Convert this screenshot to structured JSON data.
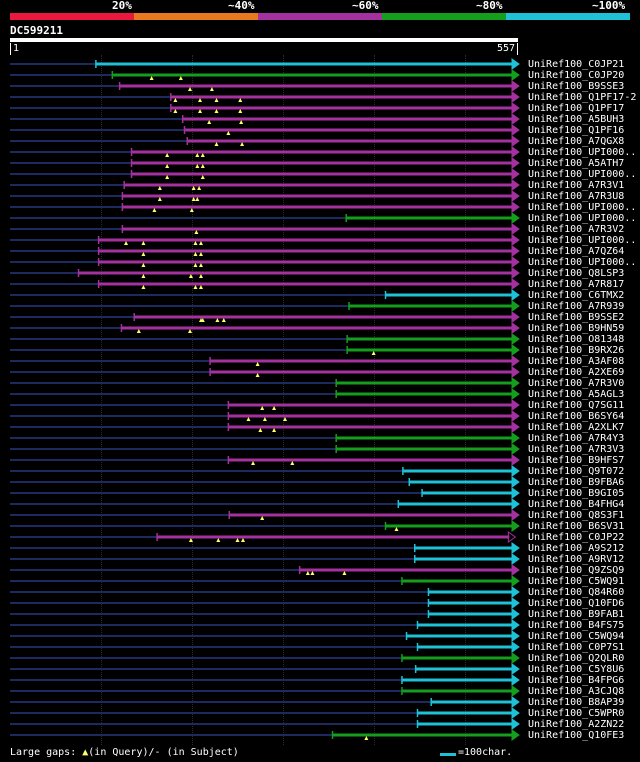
{
  "legend_scale": [
    {
      "label": "20%",
      "color": "#e8193c"
    },
    {
      "label": "~40%",
      "color": "#e8791e"
    },
    {
      "label": "~60%",
      "color": "#a3319e"
    },
    {
      "label": "~80%",
      "color": "#159e1e"
    },
    {
      "label": "~100%",
      "color": "#1ec1d6"
    }
  ],
  "query": {
    "id": "DC599211",
    "start": "1",
    "end": "557",
    "length": 557
  },
  "colors": {
    "c20": "#e8193c",
    "c40": "#e8791e",
    "c60": "#a3319e",
    "c80": "#159e1e",
    "c100": "#1ec1d6",
    "background": "#000000",
    "unaligned": "#1c2a60",
    "gap_marker": "#ffff66"
  },
  "hits": [
    {
      "label": "UniRef100_C0JP21",
      "id_level": "c100",
      "start": 95,
      "end": 557,
      "gaps": []
    },
    {
      "label": "UniRef100_C0JP20",
      "id_level": "c80",
      "start": 113,
      "end": 557,
      "gaps": [
        156,
        188
      ]
    },
    {
      "label": "UniRef100_B9SSE3",
      "id_level": "c60",
      "start": 121,
      "end": 557,
      "gaps": [
        198,
        222
      ]
    },
    {
      "label": "UniRef100_Q1PF17-2",
      "id_level": "c60",
      "start": 177,
      "end": 557,
      "gaps": [
        182,
        209,
        227,
        253
      ]
    },
    {
      "label": "UniRef100_Q1PF17",
      "id_level": "c60",
      "start": 177,
      "end": 557,
      "gaps": [
        182,
        209,
        227,
        253
      ]
    },
    {
      "label": "UniRef100_A5BUH3",
      "id_level": "c60",
      "start": 190,
      "end": 557,
      "gaps": [
        219,
        254
      ]
    },
    {
      "label": "UniRef100_Q1PF16",
      "id_level": "c60",
      "start": 192,
      "end": 557,
      "gaps": [
        240
      ]
    },
    {
      "label": "UniRef100_A7QGX8",
      "id_level": "c60",
      "start": 195,
      "end": 557,
      "gaps": [
        227,
        255
      ]
    },
    {
      "label": "UniRef100_UPI000..",
      "id_level": "c60",
      "start": 134,
      "end": 557,
      "gaps": [
        173,
        206,
        212
      ]
    },
    {
      "label": "UniRef100_A5ATH7",
      "id_level": "c60",
      "start": 134,
      "end": 557,
      "gaps": [
        173,
        206,
        212
      ]
    },
    {
      "label": "UniRef100_UPI000..",
      "id_level": "c60",
      "start": 134,
      "end": 557,
      "gaps": [
        173,
        212
      ]
    },
    {
      "label": "UniRef100_A7R3V1",
      "id_level": "c60",
      "start": 126,
      "end": 557,
      "gaps": [
        165,
        202,
        208
      ]
    },
    {
      "label": "UniRef100_A7R3U8",
      "id_level": "c60",
      "start": 124,
      "end": 557,
      "gaps": [
        165,
        202,
        206
      ]
    },
    {
      "label": "UniRef100_UPI000..",
      "id_level": "c60",
      "start": 124,
      "end": 557,
      "gaps": [
        159,
        200
      ]
    },
    {
      "label": "UniRef100_UPI000..",
      "id_level": "c80",
      "start": 369,
      "end": 557,
      "gaps": []
    },
    {
      "label": "UniRef100_A7R3V2",
      "id_level": "c60",
      "start": 124,
      "end": 557,
      "gaps": [
        205
      ]
    },
    {
      "label": "UniRef100_UPI000..",
      "id_level": "c60",
      "start": 98,
      "end": 557,
      "gaps": [
        128,
        147,
        204,
        210
      ]
    },
    {
      "label": "UniRef100_A7QZ64",
      "id_level": "c60",
      "start": 98,
      "end": 557,
      "gaps": [
        147,
        204,
        210
      ]
    },
    {
      "label": "UniRef100_UPI000..",
      "id_level": "c60",
      "start": 98,
      "end": 557,
      "gaps": [
        147,
        204,
        210
      ]
    },
    {
      "label": "UniRef100_Q8LSP3",
      "id_level": "c60",
      "start": 76,
      "end": 557,
      "gaps": [
        147,
        199,
        210
      ]
    },
    {
      "label": "UniRef100_A7R817",
      "id_level": "c60",
      "start": 98,
      "end": 557,
      "gaps": [
        147,
        204,
        210
      ]
    },
    {
      "label": "UniRef100_C6TMX2",
      "id_level": "c100",
      "start": 412,
      "end": 557,
      "gaps": []
    },
    {
      "label": "UniRef100_A7R939",
      "id_level": "c80",
      "start": 372,
      "end": 557,
      "gaps": []
    },
    {
      "label": "UniRef100_B9SSE2",
      "id_level": "c60",
      "start": 137,
      "end": 557,
      "gaps": [
        210,
        212,
        228,
        235
      ]
    },
    {
      "label": "UniRef100_B9HN59",
      "id_level": "c60",
      "start": 123,
      "end": 557,
      "gaps": [
        142,
        198
      ]
    },
    {
      "label": "UniRef100_O81348",
      "id_level": "c80",
      "start": 370,
      "end": 557,
      "gaps": []
    },
    {
      "label": "UniRef100_B9RX26",
      "id_level": "c80",
      "start": 370,
      "end": 557,
      "gaps": [
        399
      ]
    },
    {
      "label": "UniRef100_A3AF08",
      "id_level": "c60",
      "start": 220,
      "end": 557,
      "gaps": [
        272
      ]
    },
    {
      "label": "UniRef100_A2XE69",
      "id_level": "c60",
      "start": 220,
      "end": 557,
      "gaps": [
        272
      ]
    },
    {
      "label": "UniRef100_A7R3V0",
      "id_level": "c80",
      "start": 358,
      "end": 557,
      "gaps": []
    },
    {
      "label": "UniRef100_A5AGL3",
      "id_level": "c80",
      "start": 358,
      "end": 557,
      "gaps": []
    },
    {
      "label": "UniRef100_Q7SG11",
      "id_level": "c60",
      "start": 240,
      "end": 557,
      "gaps": [
        277,
        290
      ]
    },
    {
      "label": "UniRef100_B6SY64",
      "id_level": "c60",
      "start": 240,
      "end": 557,
      "gaps": [
        262,
        280,
        302
      ]
    },
    {
      "label": "UniRef100_A2XLK7",
      "id_level": "c60",
      "start": 240,
      "end": 557,
      "gaps": [
        275,
        290
      ]
    },
    {
      "label": "UniRef100_A7R4Y3",
      "id_level": "c80",
      "start": 358,
      "end": 557,
      "gaps": []
    },
    {
      "label": "UniRef100_A7R3V3",
      "id_level": "c80",
      "start": 358,
      "end": 557,
      "gaps": []
    },
    {
      "label": "UniRef100_B9HFS7",
      "id_level": "c60",
      "start": 240,
      "end": 557,
      "gaps": [
        267,
        310
      ]
    },
    {
      "label": "UniRef100_Q9T072",
      "id_level": "c100",
      "start": 431,
      "end": 557,
      "gaps": []
    },
    {
      "label": "UniRef100_B9FBA6",
      "id_level": "c100",
      "start": 438,
      "end": 557,
      "gaps": []
    },
    {
      "label": "UniRef100_B9GI05",
      "id_level": "c100",
      "start": 452,
      "end": 557,
      "gaps": []
    },
    {
      "label": "UniRef100_B4FHG4",
      "id_level": "c100",
      "start": 426,
      "end": 557,
      "gaps": []
    },
    {
      "label": "UniRef100_Q8S3F1",
      "id_level": "c60",
      "start": 241,
      "end": 557,
      "gaps": [
        277
      ]
    },
    {
      "label": "UniRef100_B6SV31",
      "id_level": "c80",
      "start": 412,
      "end": 557,
      "gaps": [
        424
      ]
    },
    {
      "label": "UniRef100_C0JP22",
      "id_level": "c60",
      "start": 162,
      "end": 553,
      "gaps": [
        199,
        229,
        250,
        256
      ]
    },
    {
      "label": "UniRef100_A9S212",
      "id_level": "c100",
      "start": 444,
      "end": 557,
      "gaps": []
    },
    {
      "label": "UniRef100_A9RV12",
      "id_level": "c100",
      "start": 444,
      "end": 557,
      "gaps": []
    },
    {
      "label": "UniRef100_Q9ZSQ9",
      "id_level": "c60",
      "start": 318,
      "end": 557,
      "gaps": [
        327,
        332,
        367
      ]
    },
    {
      "label": "UniRef100_C5WQ91",
      "id_level": "c80",
      "start": 430,
      "end": 557,
      "gaps": []
    },
    {
      "label": "UniRef100_Q84R60",
      "id_level": "c100",
      "start": 459,
      "end": 557,
      "gaps": []
    },
    {
      "label": "UniRef100_Q10FD6",
      "id_level": "c100",
      "start": 459,
      "end": 557,
      "gaps": []
    },
    {
      "label": "UniRef100_B9FAB1",
      "id_level": "c100",
      "start": 459,
      "end": 557,
      "gaps": []
    },
    {
      "label": "UniRef100_B4FS75",
      "id_level": "c100",
      "start": 447,
      "end": 557,
      "gaps": []
    },
    {
      "label": "UniRef100_C5WQ94",
      "id_level": "c100",
      "start": 435,
      "end": 557,
      "gaps": []
    },
    {
      "label": "UniRef100_C0P7S1",
      "id_level": "c100",
      "start": 447,
      "end": 557,
      "gaps": []
    },
    {
      "label": "UniRef100_Q2QLR0",
      "id_level": "c80",
      "start": 430,
      "end": 557,
      "gaps": []
    },
    {
      "label": "UniRef100_C5Y8U6",
      "id_level": "c100",
      "start": 445,
      "end": 557,
      "gaps": []
    },
    {
      "label": "UniRef100_B4FPG6",
      "id_level": "c100",
      "start": 430,
      "end": 557,
      "gaps": []
    },
    {
      "label": "UniRef100_A3CJQ8",
      "id_level": "c80",
      "start": 430,
      "end": 557,
      "gaps": []
    },
    {
      "label": "UniRef100_B8AP39",
      "id_level": "c100",
      "start": 462,
      "end": 557,
      "gaps": []
    },
    {
      "label": "UniRef100_C5WPR0",
      "id_level": "c100",
      "start": 447,
      "end": 557,
      "gaps": []
    },
    {
      "label": "UniRef100_A2ZN22",
      "id_level": "c100",
      "start": 447,
      "end": 557,
      "gaps": []
    },
    {
      "label": "UniRef100_Q10FE3",
      "id_level": "c80",
      "start": 354,
      "end": 557,
      "gaps": [
        391
      ]
    }
  ],
  "footer": {
    "legend_prefix": "Large gaps: ",
    "query_marker": "▲",
    "query_text": "(in Query)/",
    "subject_marker": "-",
    "subject_text": " (in Subject)",
    "scale_label": "=100char."
  }
}
